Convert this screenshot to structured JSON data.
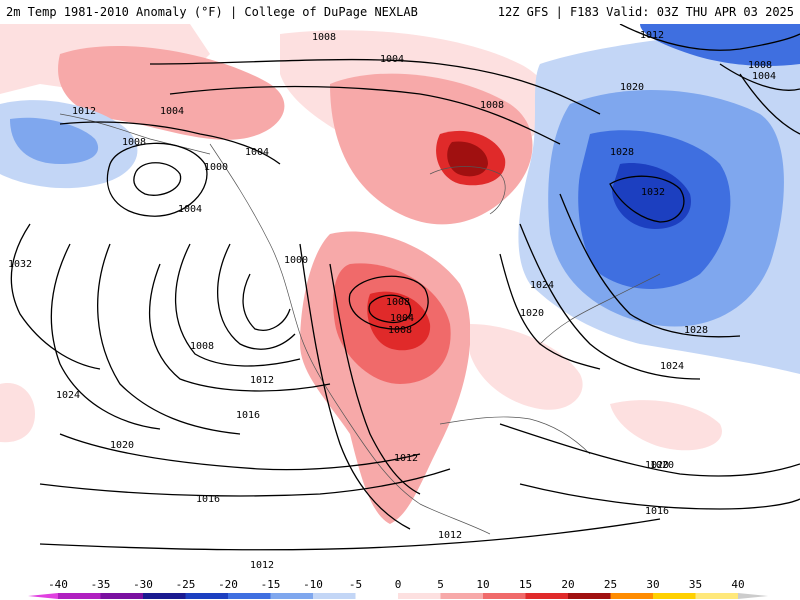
{
  "header": {
    "left_title": "2m Temp 1981-2010 Anomaly (°F) | College of DuPage NEXLAB",
    "right_title": "12Z GFS | F183 Valid: 03Z THU APR 03 2025"
  },
  "isobar_labels": [
    {
      "text": "1008"
    },
    {
      "text": "1004"
    },
    {
      "text": "1008"
    },
    {
      "text": "1004"
    },
    {
      "text": "1012"
    },
    {
      "text": "1008"
    },
    {
      "text": "1004"
    },
    {
      "text": "1000"
    },
    {
      "text": "1004"
    },
    {
      "text": "1032"
    },
    {
      "text": "1000"
    },
    {
      "text": "1008"
    },
    {
      "text": "1012"
    },
    {
      "text": "1024"
    },
    {
      "text": "1016"
    },
    {
      "text": "1020"
    },
    {
      "text": "1016"
    },
    {
      "text": "1012"
    },
    {
      "text": "1008"
    },
    {
      "text": "1004"
    },
    {
      "text": "1008"
    },
    {
      "text": "1012"
    },
    {
      "text": "1024"
    },
    {
      "text": "1020"
    },
    {
      "text": "1012"
    },
    {
      "text": "1020"
    },
    {
      "text": "1012"
    },
    {
      "text": "1020"
    },
    {
      "text": "1028"
    },
    {
      "text": "1032"
    },
    {
      "text": "1028"
    },
    {
      "text": "1024"
    },
    {
      "text": "1020"
    },
    {
      "text": "1016"
    },
    {
      "text": "1008"
    },
    {
      "text": "1004"
    }
  ],
  "legend": {
    "ticks": [
      "-40",
      "-35",
      "-30",
      "-25",
      "-20",
      "-15",
      "-10",
      "-5",
      "0",
      "5",
      "10",
      "15",
      "20",
      "25",
      "30",
      "35",
      "40"
    ],
    "colors": [
      "#e040e0",
      "#b020c0",
      "#7a10a0",
      "#1a1a90",
      "#1c3fc0",
      "#3f6fe0",
      "#7fa7ee",
      "#c3d6f6",
      "#ffffff",
      "#fde0e0",
      "#f7a9a9",
      "#f06a6a",
      "#e02a2a",
      "#a01010",
      "#ff8c00",
      "#ffd000",
      "#ffe87a"
    ]
  }
}
